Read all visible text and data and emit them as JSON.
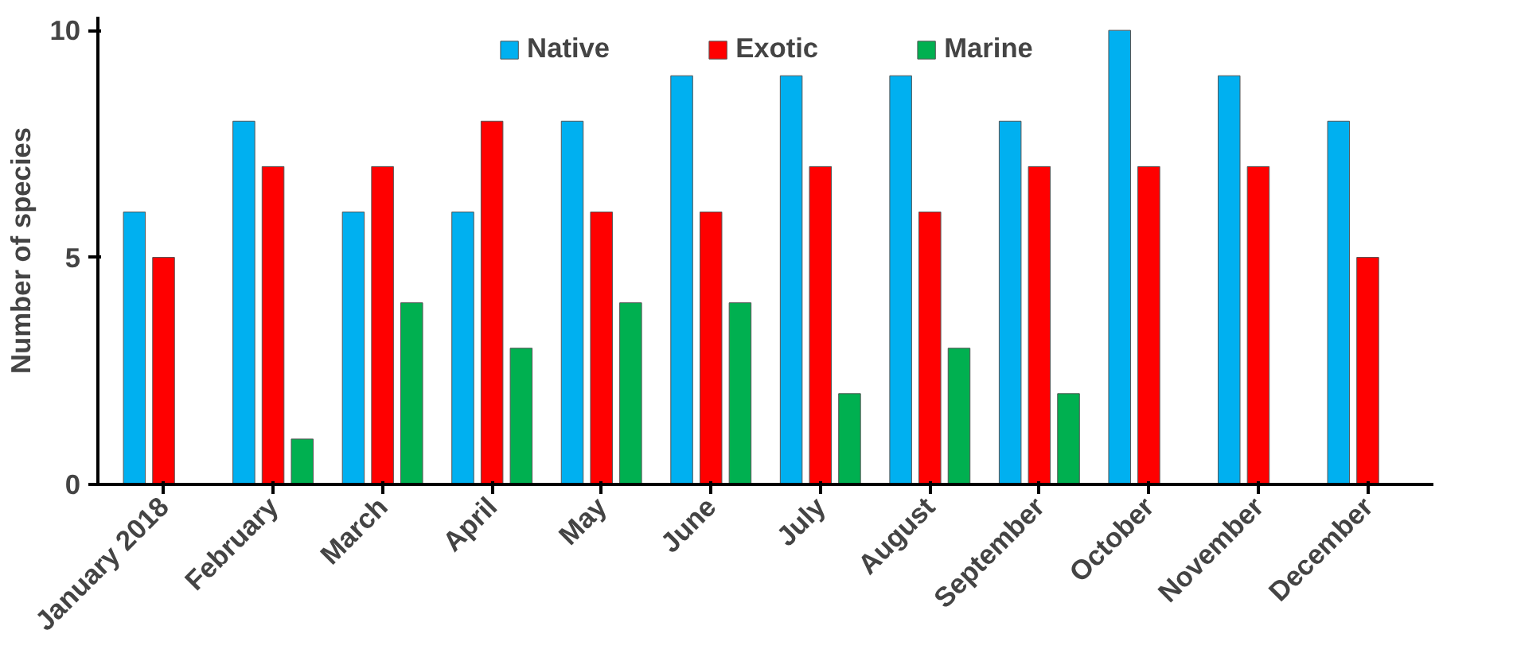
{
  "chart_data": {
    "type": "bar",
    "ylabel": "Number of species",
    "categories": [
      "January 2018",
      "February",
      "March",
      "April",
      "May",
      "June",
      "July",
      "August",
      "September",
      "October",
      "November",
      "December"
    ],
    "series": [
      {
        "name": "Native",
        "color": "#00b0f0",
        "values": [
          6,
          8,
          6,
          6,
          8,
          9,
          9,
          9,
          8,
          10,
          9,
          8
        ]
      },
      {
        "name": "Exotic",
        "color": "#ff0000",
        "values": [
          5,
          7,
          7,
          8,
          6,
          6,
          7,
          6,
          7,
          7,
          7,
          5
        ]
      },
      {
        "name": "Marine",
        "color": "#00b050",
        "values": [
          null,
          1,
          4,
          3,
          4,
          4,
          2,
          3,
          2,
          null,
          null,
          null
        ]
      }
    ],
    "ylim": [
      0,
      10.3
    ],
    "yticks": [
      0,
      5,
      10
    ],
    "grid": false,
    "legend": "top"
  }
}
